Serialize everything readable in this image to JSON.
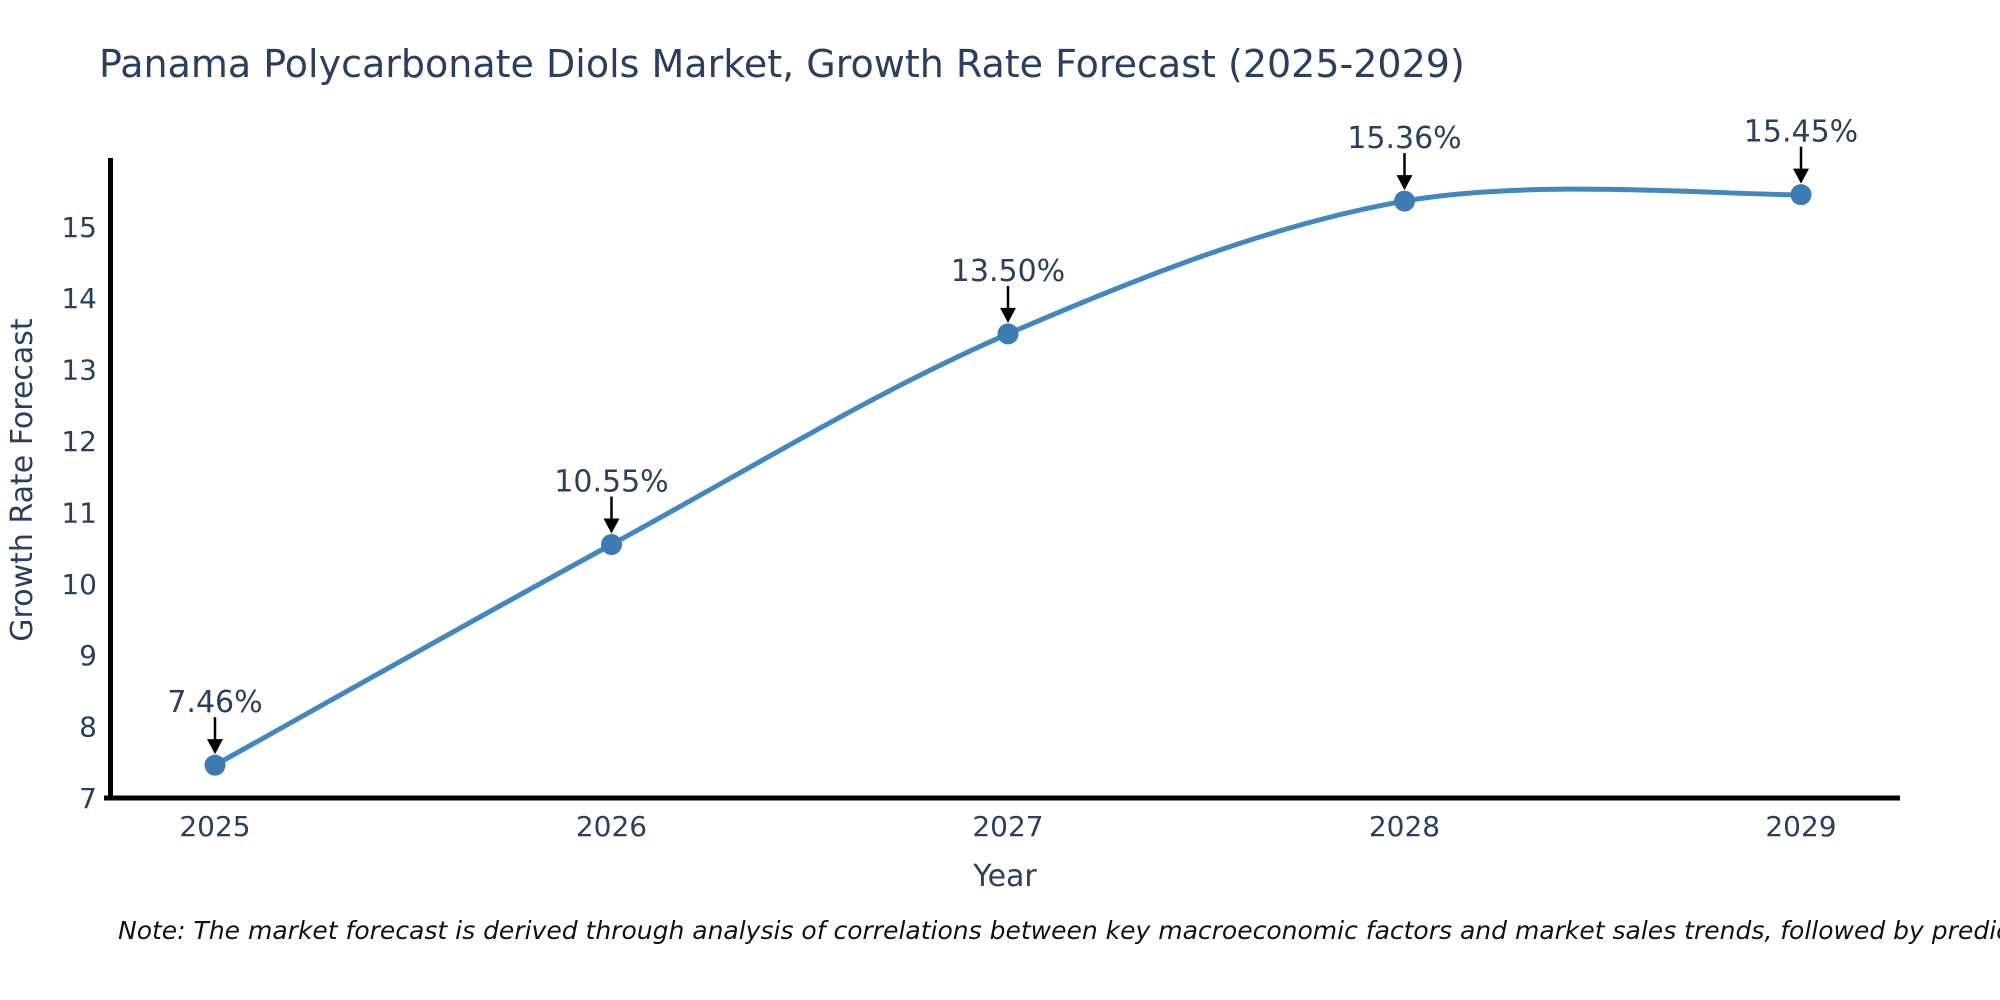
{
  "title": "Panama Polycarbonate Diols Market, Growth Rate Forecast (2025-2029)",
  "note": "Note: The market forecast is derived through analysis of correlations between key macroeconomic factors and market sales trends, followed by predictive modeling to project future sales",
  "chart_data": {
    "type": "line",
    "title": "Panama Polycarbonate Diols Market, Growth Rate Forecast (2025-2029)",
    "x": [
      2025,
      2026,
      2027,
      2028,
      2029
    ],
    "series": [
      {
        "name": "Growth Rate Forecast",
        "values": [
          7.46,
          10.55,
          13.5,
          15.36,
          15.45
        ]
      }
    ],
    "point_labels": [
      "7.46%",
      "10.55%",
      "13.50%",
      "15.36%",
      "15.45%"
    ],
    "xlabel": "Year",
    "ylabel": "Growth Rate Forecast",
    "ylim": [
      7,
      15.94
    ],
    "yticks": [
      7,
      8,
      9,
      10,
      11,
      12,
      13,
      14,
      15
    ],
    "line_shape": "spline",
    "grid": false,
    "legend": "none",
    "colors": {
      "line": "#4287be",
      "marker": "#3d7cb2",
      "axis": "#000000",
      "text": "#2a3f5f",
      "arrow": "#000000",
      "note_text": "#111111",
      "background": "#ffffff"
    }
  }
}
